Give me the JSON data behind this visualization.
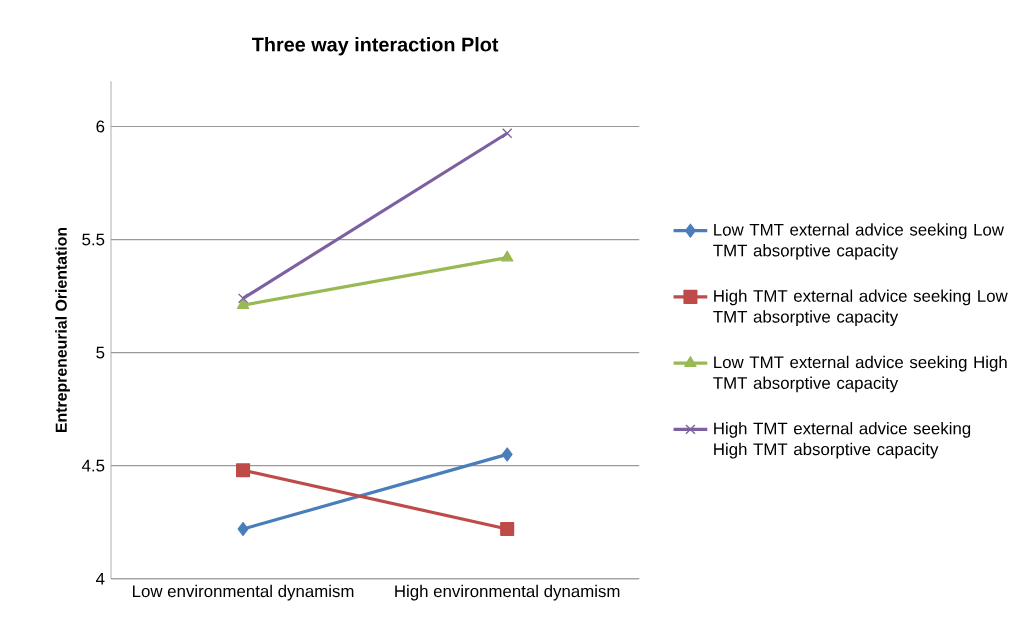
{
  "chart_data": {
    "type": "line",
    "title": "Three way interaction Plot",
    "ylabel": "Entrepreneurial Orientation",
    "categories": [
      "Low environmental dynamism",
      "High environmental dynamism"
    ],
    "series": [
      {
        "name": "Low TMT external advice seeking Low TMT absorptive capacity",
        "color": "#4a7ebb",
        "marker": "diamond",
        "values": [
          4.22,
          4.55
        ]
      },
      {
        "name": "High TMT external advice seeking Low TMT absorptive capacity",
        "color": "#be4b48",
        "marker": "square",
        "values": [
          4.48,
          4.22
        ]
      },
      {
        "name": "Low TMT external advice seeking High TMT absorptive capacity",
        "color": "#98b954",
        "marker": "triangle",
        "values": [
          5.21,
          5.42
        ]
      },
      {
        "name": "High TMT external advice seeking High TMT absorptive capacity",
        "color": "#7d60a0",
        "marker": "cross",
        "values": [
          5.24,
          5.97
        ]
      }
    ],
    "ylim": [
      4,
      6.2
    ],
    "yticks": [
      4,
      4.5,
      5,
      5.5,
      6
    ],
    "grid": "y",
    "legend": "right",
    "line_style": "solid"
  }
}
